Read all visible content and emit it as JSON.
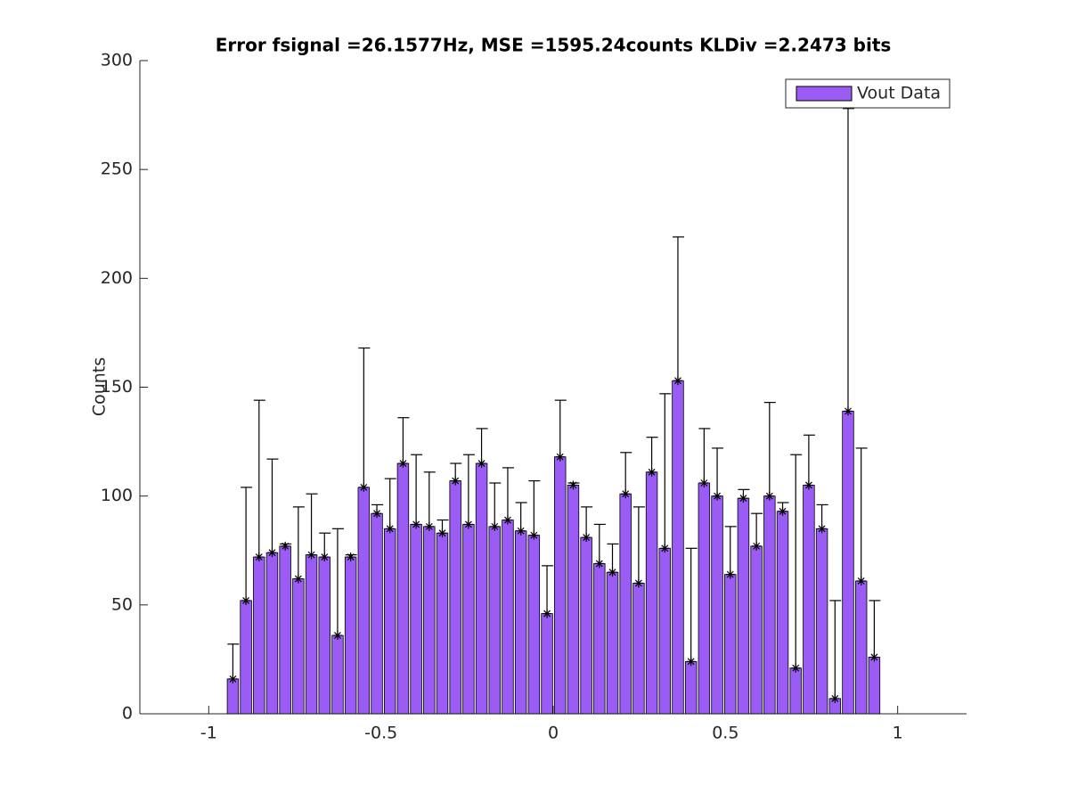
{
  "chart_data": {
    "type": "bar",
    "title": "Error fsignal =26.1577Hz, MSE =1595.24counts KLDiv =2.2473 bits",
    "ylabel": "Counts",
    "x": [
      -0.93,
      -0.892,
      -0.854,
      -0.816,
      -0.778,
      -0.74,
      -0.702,
      -0.664,
      -0.626,
      -0.588,
      -0.55,
      -0.512,
      -0.474,
      -0.436,
      -0.398,
      -0.36,
      -0.322,
      -0.284,
      -0.246,
      -0.208,
      -0.17,
      -0.132,
      -0.094,
      -0.056,
      -0.018,
      0.02,
      0.058,
      0.096,
      0.134,
      0.172,
      0.21,
      0.248,
      0.286,
      0.324,
      0.362,
      0.4,
      0.438,
      0.476,
      0.514,
      0.552,
      0.59,
      0.628,
      0.666,
      0.704,
      0.742,
      0.78,
      0.818,
      0.856,
      0.894,
      0.932
    ],
    "series": [
      {
        "name": "Vout Data",
        "color": "#9b5cf6",
        "values": [
          16,
          52,
          72,
          74,
          77,
          62,
          73,
          72,
          36,
          72,
          104,
          92,
          85,
          115,
          87,
          86,
          83,
          107,
          87,
          115,
          86,
          89,
          84,
          82,
          46,
          118,
          105,
          81,
          69,
          65,
          101,
          60,
          111,
          76,
          153,
          24,
          106,
          100,
          64,
          99,
          77,
          100,
          93,
          21,
          105,
          85,
          7,
          139,
          61,
          26
        ],
        "errors": [
          16,
          52,
          72,
          43,
          1,
          33,
          28,
          11,
          49,
          1,
          64,
          4,
          23,
          21,
          32,
          25,
          6,
          8,
          32,
          16,
          20,
          24,
          13,
          25,
          22,
          26,
          1,
          14,
          18,
          13,
          19,
          35,
          16,
          71,
          66,
          52,
          25,
          22,
          22,
          4,
          15,
          43,
          4,
          98,
          23,
          11,
          45,
          139,
          61,
          26
        ]
      }
    ],
    "xlim": [
      -1.2,
      1.2
    ],
    "xticks": [
      -1,
      -0.5,
      0,
      0.5,
      1
    ],
    "ylim": [
      0,
      300
    ],
    "yticks": [
      0,
      50,
      100,
      150,
      200,
      250,
      300
    ],
    "legend": "northeast"
  }
}
